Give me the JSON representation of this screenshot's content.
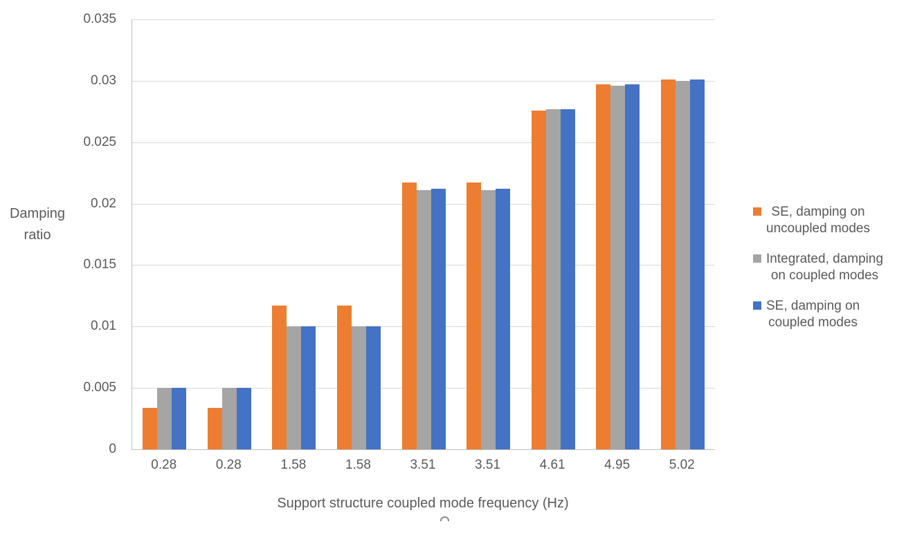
{
  "figure": {
    "y_axis_title": "Damping\nratio",
    "x_axis_title": "Support structure coupled mode frequency (Hz)"
  },
  "chart_data": {
    "type": "bar",
    "title": "",
    "xlabel": "Support structure coupled mode frequency (Hz)",
    "ylabel": "Damping ratio",
    "categories": [
      "0.28",
      "0.28",
      "1.58",
      "1.58",
      "3.51",
      "3.51",
      "4.61",
      "4.95",
      "5.02"
    ],
    "series": [
      {
        "name": "SE, damping on uncoupled modes",
        "color": "#ED7D31",
        "values": [
          0.0034,
          0.0034,
          0.0117,
          0.0117,
          0.0217,
          0.0217,
          0.0276,
          0.0297,
          0.0301
        ]
      },
      {
        "name": "Integrated, damping on coupled modes",
        "color": "#A5A5A5",
        "values": [
          0.005,
          0.005,
          0.01,
          0.01,
          0.0211,
          0.0211,
          0.0277,
          0.0296,
          0.03
        ]
      },
      {
        "name": "SE, damping on coupled modes",
        "color": "#4472C4",
        "values": [
          0.005,
          0.005,
          0.01,
          0.01,
          0.0212,
          0.0212,
          0.0277,
          0.0297,
          0.0301
        ]
      }
    ],
    "legend_labels": [
      "SE, damping on\nuncoupled modes",
      "Integrated, damping\non coupled modes",
      "SE, damping on\ncoupled modes"
    ],
    "legend_position": "right",
    "ylim": [
      0,
      0.035
    ],
    "ytick_step": 0.005,
    "yticks": [
      "0",
      "0.005",
      "0.01",
      "0.015",
      "0.02",
      "0.025",
      "0.03",
      "0.035"
    ],
    "grid": true
  },
  "colors": {
    "text": "#595959",
    "gridline": "#D9D9D9",
    "axis_line": "#BFBFBF",
    "background": "#FFFFFF"
  }
}
